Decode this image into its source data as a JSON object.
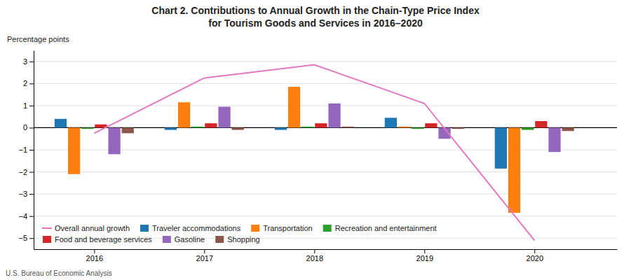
{
  "chart_data": {
    "type": "bar",
    "title": "Chart 2. Contributions to Annual Growth in the Chain-Type Price Index",
    "subtitle": "for Tourism Goods and Services in 2016–2020",
    "y_label": "Percentage points",
    "source": "U.S. Bureau of Economic Analysis",
    "x": [
      2016,
      2017,
      2018,
      2019,
      2020
    ],
    "xlim": [
      2015.45,
      2020.75
    ],
    "xticks": [
      2016,
      2017,
      2018,
      2019,
      2020
    ],
    "ylim": [
      -5.5,
      3.5
    ],
    "yticks": [
      {
        "value": -5,
        "label": "−5"
      },
      {
        "value": -4,
        "label": "−4"
      },
      {
        "value": -3,
        "label": "−3"
      },
      {
        "value": -2,
        "label": "−2"
      },
      {
        "value": -1,
        "label": "−1"
      },
      0,
      1,
      2,
      3
    ],
    "grid": true,
    "legend": "lower left",
    "series": [
      {
        "name": "Traveler accommodations",
        "type": "bar",
        "values": [
          0.4,
          -0.1,
          -0.1,
          0.45,
          -1.85
        ]
      },
      {
        "name": "Transportation",
        "type": "bar",
        "values": [
          -2.1,
          1.15,
          1.85,
          0.05,
          -3.85
        ]
      },
      {
        "name": "Recreation and entertainment",
        "type": "bar",
        "values": [
          -0.05,
          0.05,
          0.05,
          -0.05,
          -0.1
        ]
      },
      {
        "name": "Food and beverage services",
        "type": "bar",
        "values": [
          0.15,
          0.2,
          0.2,
          0.2,
          0.3
        ]
      },
      {
        "name": "Gasoline",
        "type": "bar",
        "values": [
          -1.2,
          0.95,
          1.1,
          -0.5,
          -1.1
        ]
      },
      {
        "name": "Shopping",
        "type": "bar",
        "values": [
          -0.25,
          -0.1,
          0.05,
          -0.05,
          -0.15
        ]
      },
      {
        "name": "Overall annual growth",
        "type": "line",
        "values": [
          -0.25,
          2.25,
          2.85,
          1.1,
          -5.1
        ]
      }
    ]
  }
}
